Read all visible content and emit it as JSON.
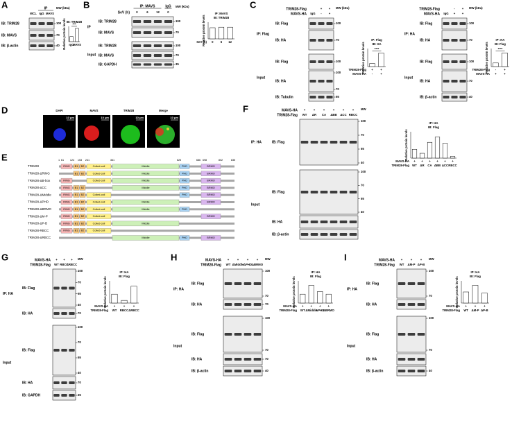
{
  "panels": {
    "A": {
      "letter": "A",
      "ip": "IP",
      "mw_title": "MW (kDa)",
      "conditions": [
        {
          "signs": [
            "WCL",
            "IgG",
            "MAVS"
          ]
        }
      ],
      "groups": [
        {
          "blots": [
            {
              "label": "IB: TRIM28",
              "mw": [
                100
              ]
            },
            {
              "label": "IB: MAVS",
              "mw": [
                70
              ]
            },
            {
              "label": "IB: β-actin",
              "mw": [
                40
              ]
            }
          ]
        }
      ]
    },
    "B": {
      "letter": "B",
      "ip": "IP: MAVS",
      "igg": "IgG",
      "mw_title": "MW (kDa)",
      "conditions": [
        {
          "name": "SeV (h)",
          "signs": [
            "0",
            "6",
            "12",
            "0"
          ]
        }
      ],
      "groups": [
        {
          "label": "IP",
          "blots": [
            {
              "label": "IB: TRIM28",
              "mw": [
                100
              ]
            },
            {
              "label": "IB: MAVS",
              "mw": [
                70
              ]
            }
          ]
        },
        {
          "label": "Input",
          "blots": [
            {
              "label": "IB: TRIM28",
              "mw": [
                100
              ]
            },
            {
              "label": "IB: MAVS",
              "mw": [
                70
              ]
            },
            {
              "label": "IB: GAPDH",
              "mw": [
                35
              ]
            }
          ]
        }
      ]
    },
    "C1": {
      "letter": "C",
      "igg": "IgG",
      "mw_title": "MW (kDa)",
      "conditions": [
        {
          "name": "TRIM28-Flag",
          "signs": [
            "+",
            "+"
          ]
        },
        {
          "name": "MAVS-HA",
          "signs": [
            "-",
            "+"
          ]
        }
      ],
      "groups": [
        {
          "label": "IP: Flag",
          "blots": [
            {
              "label": "IB: Flag",
              "mw": [
                100
              ]
            },
            {
              "label": "IB: HA",
              "mw": [
                70
              ]
            }
          ]
        },
        {
          "label": "Input",
          "blots": [
            {
              "label": "IB: Flag",
              "mw": [
                100
              ]
            },
            {
              "label": "IB: HA",
              "mw": [
                100,
                70
              ]
            },
            {
              "label": "IB: Tubulin",
              "mw": [
                55
              ]
            }
          ]
        }
      ]
    },
    "C2": {
      "igg": "IgG",
      "mw_title": "MW (kDa)",
      "conditions": [
        {
          "name": "TRIM28-Flag",
          "signs": [
            "-",
            "+"
          ]
        },
        {
          "name": "MAVS-HA",
          "signs": [
            "+",
            "+"
          ]
        }
      ],
      "groups": [
        {
          "label": "IP: HA",
          "blots": [
            {
              "label": "IB: Flag",
              "mw": [
                100
              ]
            },
            {
              "label": "IB: HA",
              "mw": [
                70
              ]
            }
          ]
        },
        {
          "label": "Input",
          "blots": [
            {
              "label": "IB: Flag",
              "mw": [
                100
              ]
            },
            {
              "label": "IB: HA",
              "mw": [
                70
              ]
            },
            {
              "label": "IB: β-actin",
              "mw": [
                40
              ]
            }
          ]
        }
      ]
    },
    "D": {
      "letter": "D",
      "channels": [
        "DAPI",
        "MAVS",
        "TRIM28",
        "Merge"
      ],
      "scale": "10 μm"
    },
    "E": {
      "letter": "E",
      "positions": [
        1,
        61,
        124,
        153,
        241,
        361,
        625,
        686,
        698,
        802,
        835
      ],
      "constructs": [
        {
          "name": "TRIM28",
          "domains": [
            "RING",
            "B1",
            "B2",
            "Coiled-coil",
            "Middle",
            "PHD",
            "BRMO"
          ]
        },
        {
          "name": "TRIM28-ΔRING",
          "domains": [
            "B1",
            "B2",
            "Coiled-coil",
            "Middle",
            "PHD",
            "BRMO"
          ]
        },
        {
          "name": "TRIM28-ΔB-box",
          "domains": [
            "RING",
            "Coiled-coil",
            "Middle",
            "PHD",
            "BRMO"
          ]
        },
        {
          "name": "TRIM28-ΔCC",
          "domains": [
            "RING",
            "B1",
            "B2",
            "Middle",
            "PHD",
            "BRMO"
          ]
        },
        {
          "name": "TRIM28-ΔMiddle",
          "domains": [
            "RING",
            "B1",
            "B2",
            "Coiled-coil",
            "PHD",
            "BRMO"
          ]
        },
        {
          "name": "TRIM28-ΔPHD",
          "domains": [
            "RING",
            "B1",
            "B2",
            "Coiled-coil",
            "Middle",
            "BRMO"
          ]
        },
        {
          "name": "TRIM28-ΔBRMO",
          "domains": [
            "RING",
            "B1",
            "B2",
            "Coiled-coil",
            "Middle",
            "PHD"
          ]
        },
        {
          "name": "TRIM28-ΔM-P",
          "domains": [
            "RING",
            "B1",
            "B2",
            "Coiled-coil",
            "BRMO"
          ]
        },
        {
          "name": "TRIM28-ΔP-B",
          "domains": [
            "RING",
            "B1",
            "B2",
            "Coiled-coil",
            "Middle"
          ]
        },
        {
          "name": "TRIM28-RBCC",
          "domains": [
            "RING",
            "B1",
            "B2",
            "Coiled-coil"
          ]
        },
        {
          "name": "TRIM28-ΔRBCC",
          "domains": [
            "Middle",
            "PHD",
            "BRMO"
          ]
        }
      ]
    },
    "F": {
      "letter": "F",
      "mw_title": "MW",
      "conditions": [
        {
          "name": "MAVS-HA",
          "signs": [
            "+",
            "+",
            "+",
            "+",
            "+",
            "+"
          ]
        },
        {
          "name": "TRIM28-Flag",
          "signs": [
            "WT",
            "ΔR",
            "CA",
            "ΔBB",
            "ΔCC",
            "RBCC"
          ]
        }
      ],
      "groups": [
        {
          "label": "IP: HA",
          "blots": [
            {
              "label": "IB: Flag",
              "mw": [
                100,
                70,
                55,
                40
              ]
            }
          ]
        },
        {
          "label": "Input",
          "blots": [
            {
              "label": "IB: Flag",
              "mw": [
                100,
                70,
                55,
                40
              ]
            },
            {
              "label": "IB: HA",
              "mw": []
            },
            {
              "label": "IB: β-actin",
              "mw": []
            }
          ]
        }
      ]
    },
    "G": {
      "letter": "G",
      "mw_title": "MW",
      "conditions": [
        {
          "name": "MAVS-HA",
          "signs": [
            "+",
            "+",
            "+"
          ]
        },
        {
          "name": "TRIM28-Flag",
          "signs": [
            "WT",
            "RBCC",
            "ΔRBCC"
          ]
        }
      ],
      "groups": [
        {
          "label": "IP: HA",
          "blots": [
            {
              "label": "IB: Flag",
              "mw": [
                100,
                70,
                55,
                40
              ]
            },
            {
              "label": "IB: HA",
              "mw": [
                70
              ]
            }
          ]
        },
        {
          "label": "Input",
          "blots": [
            {
              "label": "IB: Flag",
              "mw": [
                100,
                70,
                55,
                40
              ]
            },
            {
              "label": "IB: HA",
              "mw": [
                70
              ]
            },
            {
              "label": "IB: GAPDH",
              "mw": [
                35
              ]
            }
          ]
        }
      ]
    },
    "H": {
      "letter": "H",
      "mw_title": "MW",
      "conditions": [
        {
          "name": "MAVS-HA",
          "signs": [
            "+",
            "+",
            "+",
            "+"
          ]
        },
        {
          "name": "TRIM28-Flag",
          "signs": [
            "WT",
            "ΔMiddle",
            "ΔPHD",
            "ΔBRMO"
          ]
        }
      ],
      "groups": [
        {
          "label": "IP: HA",
          "blots": [
            {
              "label": "IB: Flag",
              "mw": [
                100,
                70
              ]
            },
            {
              "label": "IB: HA",
              "mw": [
                70
              ]
            }
          ]
        },
        {
          "label": "Input",
          "blots": [
            {
              "label": "IB: Flag",
              "mw": [
                100,
                70
              ]
            },
            {
              "label": "IB: HA",
              "mw": [
                70
              ]
            },
            {
              "label": "IB: β-actin",
              "mw": [
                40
              ]
            }
          ]
        }
      ]
    },
    "I": {
      "letter": "I",
      "mw_title": "MW",
      "conditions": [
        {
          "name": "MAVS-HA",
          "signs": [
            "+",
            "+",
            "+"
          ]
        },
        {
          "name": "TRIM28-Flag",
          "signs": [
            "WT",
            "ΔM-P",
            "ΔP-B"
          ]
        }
      ],
      "groups": [
        {
          "label": "IP: HA",
          "blots": [
            {
              "label": "IB: Flag",
              "mw": [
                100,
                70
              ]
            },
            {
              "label": "IB: HA",
              "mw": []
            }
          ]
        },
        {
          "label": "Input",
          "blots": [
            {
              "label": "IB: Flag",
              "mw": [
                100,
                70
              ]
            },
            {
              "label": "IB: HA",
              "mw": []
            },
            {
              "label": "IB: β-actin",
              "mw": [
                40
              ]
            }
          ]
        }
      ]
    }
  },
  "chart_data": [
    {
      "type": "bar",
      "title": "IB: TRIM28",
      "ylabel": "Relative protein levels",
      "categories": [
        "IgG",
        "MAVS"
      ],
      "values": [
        1,
        2.6
      ],
      "ylim": [
        0,
        3
      ],
      "color": "#ffffff",
      "annotation": "***"
    },
    {
      "type": "bar",
      "title": "IP: MAVS",
      "subtitle": "IB: TRIM28",
      "ylabel": "Relative protein levels",
      "conditions": [
        {
          "name": "SeV (h)",
          "signs": [
            "0",
            "6",
            "12"
          ]
        }
      ],
      "values": [
        1,
        1.05,
        1.05
      ],
      "ylim": [
        0,
        1.5
      ],
      "color": "#ffffff"
    },
    {
      "type": "bar",
      "title": "IP: Flag",
      "subtitle": "IB: HA",
      "ylabel": "Relative protein levels",
      "conditions": [
        {
          "name": "TRIM28-Flag",
          "signs": [
            "+",
            "+"
          ]
        },
        {
          "name": "MAVS-HA",
          "signs": [
            "-",
            "+"
          ]
        }
      ],
      "values": [
        1,
        4.5
      ],
      "ylim": [
        0,
        6
      ],
      "color": "#ffffff",
      "annotation": "****"
    },
    {
      "type": "bar",
      "title": "IP: HA",
      "subtitle": "IB: Flag",
      "ylabel": "Relative protein levels",
      "conditions": [
        {
          "name": "TRIM28-Flag",
          "signs": [
            "-",
            "+"
          ]
        },
        {
          "name": "MAVS-HA",
          "signs": [
            "+",
            "+"
          ]
        }
      ],
      "values": [
        1,
        3.8
      ],
      "ylim": [
        0,
        5
      ],
      "color": "#ffffff",
      "annotation": "****"
    },
    {
      "type": "bar",
      "title": "IP: HA",
      "subtitle": "IB: Flag",
      "ylabel": "Relative protein levels",
      "conditions": [
        {
          "name": "MAVS-HA",
          "signs": [
            "+",
            "+",
            "+",
            "+",
            "+",
            "+"
          ]
        },
        {
          "name": "TRIM28-Flag",
          "signs": [
            "WT",
            "ΔR",
            "CA",
            "ΔBB",
            "ΔCC",
            "RBCC"
          ]
        }
      ],
      "values": [
        1,
        0.55,
        1.8,
        2.4,
        1.7,
        0.2
      ],
      "ylim": [
        0,
        3
      ],
      "color": "#ffffff"
    },
    {
      "type": "bar",
      "title": "IP: HA",
      "subtitle": "IB: Flag",
      "ylabel": "Relative protein levels",
      "conditions": [
        {
          "name": "MAVS-HA",
          "signs": [
            "+",
            "+",
            "+"
          ]
        },
        {
          "name": "TRIM28-Flag",
          "signs": [
            "WT",
            "RBCC",
            "ΔRBCC"
          ]
        }
      ],
      "values": [
        1,
        0.3,
        1.9
      ],
      "ylim": [
        0,
        2.5
      ],
      "color": "#ffffff"
    },
    {
      "type": "bar",
      "title": "IP: HA",
      "subtitle": "IB: Flag",
      "ylabel": "Relative protein levels",
      "conditions": [
        {
          "name": "MAVS-HA",
          "signs": [
            "+",
            "+",
            "+",
            "+"
          ]
        },
        {
          "name": "TRIM28-Flag",
          "signs": [
            "WT",
            "ΔMiddle",
            "ΔPHD",
            "ΔBRMO"
          ]
        }
      ],
      "values": [
        1,
        2,
        1.3,
        1
      ],
      "ylim": [
        0,
        2.5
      ],
      "color": "#ffffff"
    },
    {
      "type": "bar",
      "title": "IP: HA",
      "subtitle": "IB: Flag",
      "ylabel": "Relative protein levels",
      "conditions": [
        {
          "name": "MAVS-HA",
          "signs": [
            "+",
            "+",
            "+"
          ]
        },
        {
          "name": "TRIM28-Flag",
          "signs": [
            "WT",
            "ΔM-P",
            "ΔP-B"
          ]
        }
      ],
      "values": [
        1,
        1.6,
        0.9
      ],
      "ylim": [
        0,
        2
      ],
      "color": "#ffffff"
    }
  ]
}
